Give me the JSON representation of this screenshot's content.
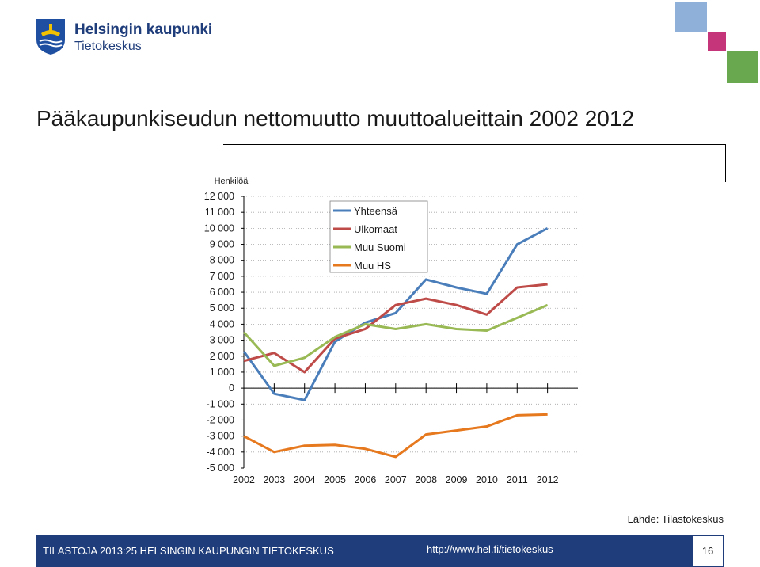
{
  "header": {
    "org_name": "Helsingin kaupunki",
    "org_dept": "Tietokeskus",
    "squares": [
      {
        "name": "square-blue",
        "color": "#8fb0d9"
      },
      {
        "name": "square-pink",
        "color": "#c4357a"
      },
      {
        "name": "square-green",
        "color": "#6aa84f"
      }
    ]
  },
  "title": "Pääkaupunkiseudun nettomuutto muuttoalueittain 2002 2012",
  "chart_data": {
    "type": "line",
    "ylabel": "Henkilöä",
    "xlabel": "",
    "categories": [
      "2002",
      "2003",
      "2004",
      "2005",
      "2006",
      "2007",
      "2008",
      "2009",
      "2010",
      "2011",
      "2012"
    ],
    "ylim": [
      -5000,
      12000
    ],
    "yticks": [
      12000,
      11000,
      10000,
      9000,
      8000,
      7000,
      6000,
      5000,
      4000,
      3000,
      2000,
      1000,
      0,
      -1000,
      -2000,
      -3000,
      -4000,
      -5000
    ],
    "ytick_labels": [
      "12 000",
      "11 000",
      "10 000",
      "9 000",
      "8 000",
      "7 000",
      "6 000",
      "5 000",
      "4 000",
      "3 000",
      "2 000",
      "1 000",
      "0",
      "-1 000",
      "-2 000",
      "-3 000",
      "-4 000",
      "-5 000"
    ],
    "grid": "horizontal dotted",
    "legend_position": "top-left",
    "series": [
      {
        "name": "Yhteensä",
        "color": "#4a7ebb",
        "values": [
          2300,
          -350,
          -750,
          2900,
          4100,
          4700,
          6800,
          6300,
          5900,
          9000,
          10000
        ]
      },
      {
        "name": "Ulkomaat",
        "color": "#be4b48",
        "values": [
          1700,
          2200,
          1000,
          3100,
          3700,
          5200,
          5600,
          5200,
          4600,
          6300,
          6500
        ]
      },
      {
        "name": "Muu Suomi",
        "color": "#98b954",
        "values": [
          3500,
          1400,
          1900,
          3200,
          4000,
          3700,
          4000,
          3700,
          3600,
          4400,
          5200
        ]
      },
      {
        "name": "Muu HS",
        "color": "#e6781e",
        "values": [
          -3000,
          -4000,
          -3600,
          -3550,
          -3800,
          -4300,
          -2900,
          -2650,
          -2400,
          -1700,
          -1650
        ]
      }
    ]
  },
  "source": "Lähde: Tilastokeskus",
  "footer": {
    "left": "TILASTOJA 2013:25 HELSINGIN KAUPUNGIN TIETOKESKUS",
    "url": "http://www.hel.fi/tietokeskus",
    "page": "16",
    "bg_color": "#1f3d7a"
  }
}
